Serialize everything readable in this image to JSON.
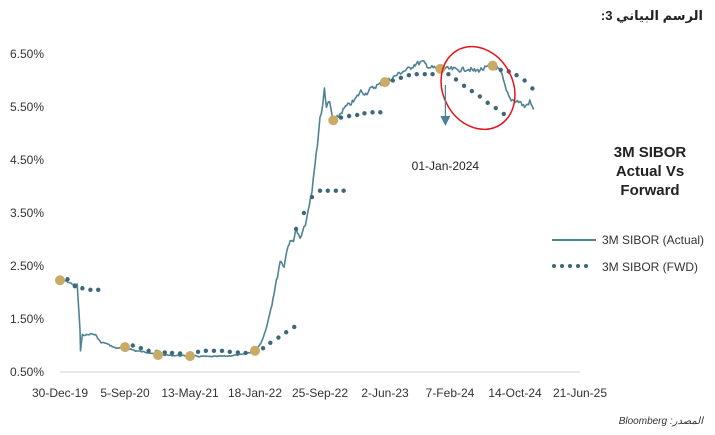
{
  "page": {
    "figure_title": "الرسم البياني 3:",
    "source": "المصدر: Bloomberg",
    "side_title_line1": "3M SIBOR",
    "side_title_line2": "Actual Vs Forward",
    "annotation": "01-Jan-2024"
  },
  "colors": {
    "actual": "#4e8393",
    "forward": "#3e6878",
    "gold": "#c8ac66",
    "highlight_circle": "#e3141b",
    "arrow": "#4e7f92",
    "axis": "#d0d0d0"
  },
  "chart_data": {
    "type": "line",
    "title": "3M SIBOR Actual Vs Forward",
    "xlabel": "",
    "ylabel": "",
    "x_ticks": [
      "30-Dec-19",
      "5-Sep-20",
      "13-May-21",
      "18-Jan-22",
      "25-Sep-22",
      "2-Jun-23",
      "7-Feb-24",
      "14-Oct-24",
      "21-Jun-25"
    ],
    "y_ticks": [
      "0.50%",
      "1.50%",
      "2.50%",
      "3.50%",
      "4.50%",
      "5.50%",
      "6.50%"
    ],
    "ylim": [
      0.5,
      6.5
    ],
    "legend": [
      "3M SIBOR (Actual)",
      "3M SIBOR (FWD)"
    ],
    "legend_position": "right",
    "series": [
      {
        "name": "3M SIBOR (Actual)",
        "style": "solid",
        "points": [
          [
            "2019-12-30",
            2.23
          ],
          [
            "2020-01-20",
            2.22
          ],
          [
            "2020-02-20",
            2.15
          ],
          [
            "2020-03-05",
            2.15
          ],
          [
            "2020-03-12",
            1.6
          ],
          [
            "2020-03-16",
            1.3
          ],
          [
            "2020-03-18",
            0.9
          ],
          [
            "2020-03-25",
            1.2
          ],
          [
            "2020-04-10",
            1.2
          ],
          [
            "2020-04-30",
            1.22
          ],
          [
            "2020-05-15",
            1.2
          ],
          [
            "2020-06-05",
            1.05
          ],
          [
            "2020-06-20",
            1.05
          ],
          [
            "2020-07-10",
            1.0
          ],
          [
            "2020-08-01",
            0.95
          ],
          [
            "2020-09-05",
            0.97
          ],
          [
            "2020-10-15",
            0.9
          ],
          [
            "2020-12-01",
            0.87
          ],
          [
            "2021-02-01",
            0.82
          ],
          [
            "2021-05-13",
            0.8
          ],
          [
            "2021-08-01",
            0.79
          ],
          [
            "2021-10-01",
            0.8
          ],
          [
            "2021-12-01",
            0.83
          ],
          [
            "2022-01-18",
            0.9
          ],
          [
            "2022-02-10",
            1.05
          ],
          [
            "2022-03-01",
            1.3
          ],
          [
            "2022-03-20",
            1.7
          ],
          [
            "2022-04-10",
            2.2
          ],
          [
            "2022-04-25",
            2.6
          ],
          [
            "2022-05-10",
            2.5
          ],
          [
            "2022-05-25",
            2.9
          ],
          [
            "2022-06-15",
            3.0
          ],
          [
            "2022-06-25",
            3.2
          ],
          [
            "2022-07-10",
            3.0
          ],
          [
            "2022-07-25",
            3.2
          ],
          [
            "2022-08-10",
            3.5
          ],
          [
            "2022-08-25",
            3.9
          ],
          [
            "2022-09-05",
            4.4
          ],
          [
            "2022-09-15",
            4.8
          ],
          [
            "2022-09-25",
            5.3
          ],
          [
            "2022-10-05",
            5.5
          ],
          [
            "2022-10-12",
            5.85
          ],
          [
            "2022-10-20",
            5.5
          ],
          [
            "2022-11-01",
            5.6
          ],
          [
            "2022-11-15",
            5.2
          ],
          [
            "2022-12-01",
            5.3
          ],
          [
            "2023-01-01",
            5.5
          ],
          [
            "2023-02-01",
            5.6
          ],
          [
            "2023-03-01",
            5.8
          ],
          [
            "2023-03-20",
            5.75
          ],
          [
            "2023-04-10",
            5.85
          ],
          [
            "2023-05-10",
            5.92
          ],
          [
            "2023-06-02",
            5.97
          ],
          [
            "2023-07-01",
            6.05
          ],
          [
            "2023-08-01",
            6.15
          ],
          [
            "2023-09-01",
            6.22
          ],
          [
            "2023-10-01",
            6.32
          ],
          [
            "2023-10-25",
            6.35
          ],
          [
            "2023-11-20",
            6.25
          ],
          [
            "2024-01-01",
            6.22
          ],
          [
            "2024-02-07",
            6.22
          ],
          [
            "2024-03-15",
            6.2
          ],
          [
            "2024-04-15",
            6.22
          ],
          [
            "2024-05-15",
            6.18
          ],
          [
            "2024-06-15",
            6.22
          ],
          [
            "2024-07-01",
            6.25
          ],
          [
            "2024-07-20",
            6.28
          ],
          [
            "2024-08-10",
            6.22
          ],
          [
            "2024-08-25",
            6.1
          ],
          [
            "2024-09-10",
            5.8
          ],
          [
            "2024-09-25",
            5.65
          ],
          [
            "2024-10-14",
            5.62
          ],
          [
            "2024-11-01",
            5.6
          ],
          [
            "2024-11-20",
            5.5
          ],
          [
            "2024-12-10",
            5.6
          ],
          [
            "2024-12-25",
            5.45
          ]
        ]
      },
      {
        "name": "3M SIBOR (FWD)",
        "style": "dotted",
        "points": [
          [
            "2019-12-30",
            2.23
          ],
          [
            "2020-01-28",
            2.25
          ],
          [
            "2020-02-25",
            2.12
          ],
          [
            "2020-03-25",
            2.08
          ],
          [
            "2020-04-25",
            2.05
          ],
          [
            "2020-05-25",
            2.05
          ],
          [
            "2020-09-05",
            0.97
          ],
          [
            "2020-10-05",
            1.0
          ],
          [
            "2020-11-05",
            0.95
          ],
          [
            "2020-12-05",
            0.9
          ],
          [
            "2021-01-05",
            0.88
          ],
          [
            "2021-02-05",
            0.87
          ],
          [
            "2021-03-05",
            0.86
          ],
          [
            "2021-04-05",
            0.85
          ],
          [
            "2021-05-13",
            0.85
          ],
          [
            "2021-06-13",
            0.88
          ],
          [
            "2021-07-13",
            0.9
          ],
          [
            "2021-08-13",
            0.9
          ],
          [
            "2021-09-13",
            0.9
          ],
          [
            "2021-10-13",
            0.88
          ],
          [
            "2021-11-13",
            0.87
          ],
          [
            "2021-12-13",
            0.86
          ],
          [
            "2022-01-18",
            0.9
          ],
          [
            "2022-02-18",
            0.95
          ],
          [
            "2022-03-18",
            1.05
          ],
          [
            "2022-04-18",
            1.15
          ],
          [
            "2022-05-18",
            1.25
          ],
          [
            "2022-06-18",
            1.35
          ],
          [
            "2022-06-25",
            3.2
          ],
          [
            "2022-07-25",
            3.5
          ],
          [
            "2022-08-25",
            3.8
          ],
          [
            "2022-09-25",
            3.92
          ],
          [
            "2022-10-25",
            3.92
          ],
          [
            "2022-11-25",
            3.92
          ],
          [
            "2022-12-25",
            3.92
          ],
          [
            "2022-11-15",
            5.25
          ],
          [
            "2022-12-15",
            5.3
          ],
          [
            "2023-01-15",
            5.33
          ],
          [
            "2023-02-15",
            5.35
          ],
          [
            "2023-03-15",
            5.38
          ],
          [
            "2023-04-15",
            5.4
          ],
          [
            "2023-05-15",
            5.4
          ],
          [
            "2023-06-02",
            5.97
          ],
          [
            "2023-07-02",
            6.0
          ],
          [
            "2023-08-02",
            6.05
          ],
          [
            "2023-09-02",
            6.1
          ],
          [
            "2023-10-02",
            6.12
          ],
          [
            "2023-11-02",
            6.12
          ],
          [
            "2023-12-02",
            6.12
          ],
          [
            "2024-01-01",
            6.22
          ],
          [
            "2024-02-01",
            6.12
          ],
          [
            "2024-03-01",
            6.02
          ],
          [
            "2024-04-01",
            5.9
          ],
          [
            "2024-05-01",
            5.8
          ],
          [
            "2024-06-01",
            5.7
          ],
          [
            "2024-07-01",
            5.58
          ],
          [
            "2024-08-01",
            5.48
          ],
          [
            "2024-09-01",
            5.37
          ],
          [
            "2024-07-20",
            6.28
          ],
          [
            "2024-08-20",
            6.2
          ],
          [
            "2024-09-20",
            6.17
          ],
          [
            "2024-10-20",
            6.1
          ],
          [
            "2024-11-20",
            6.0
          ],
          [
            "2024-12-20",
            5.85
          ]
        ]
      }
    ],
    "markers": [
      [
        "2019-12-30",
        2.23
      ],
      [
        "2020-09-05",
        0.97
      ],
      [
        "2021-01-10",
        0.82
      ],
      [
        "2021-05-13",
        0.8
      ],
      [
        "2022-01-18",
        0.9
      ],
      [
        "2022-11-15",
        5.25
      ],
      [
        "2023-06-02",
        5.97
      ],
      [
        "2024-01-01",
        6.22
      ],
      [
        "2024-07-20",
        6.28
      ]
    ],
    "annotation": {
      "date": "2024-01-01",
      "label": "01-Jan-2024"
    }
  }
}
